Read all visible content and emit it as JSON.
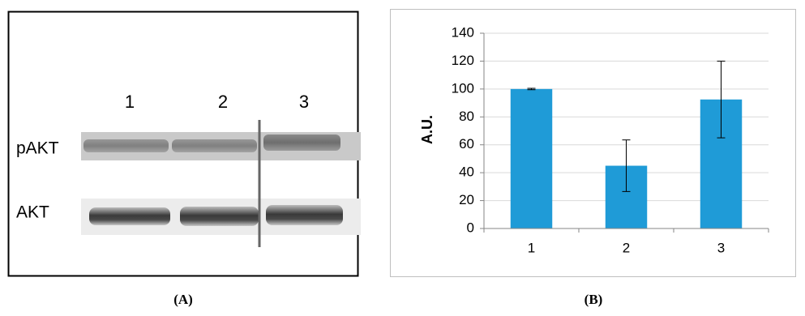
{
  "blot": {
    "lane_labels": [
      "1",
      "2",
      "3"
    ],
    "row_labels": [
      "pAKT",
      "AKT"
    ]
  },
  "panel_labels": [
    "(A)",
    "(B)"
  ],
  "chart_data": {
    "type": "bar",
    "y_label": "A.U.",
    "categories": [
      "1",
      "2",
      "3"
    ],
    "values": [
      100,
      45,
      92.5
    ],
    "errors": [
      0.5,
      18.5,
      27.5
    ],
    "color": "#1f9bd7",
    "ylim": [
      0,
      140
    ],
    "yticks": [
      0,
      20,
      40,
      60,
      80,
      100,
      120,
      140
    ],
    "grid": true
  }
}
